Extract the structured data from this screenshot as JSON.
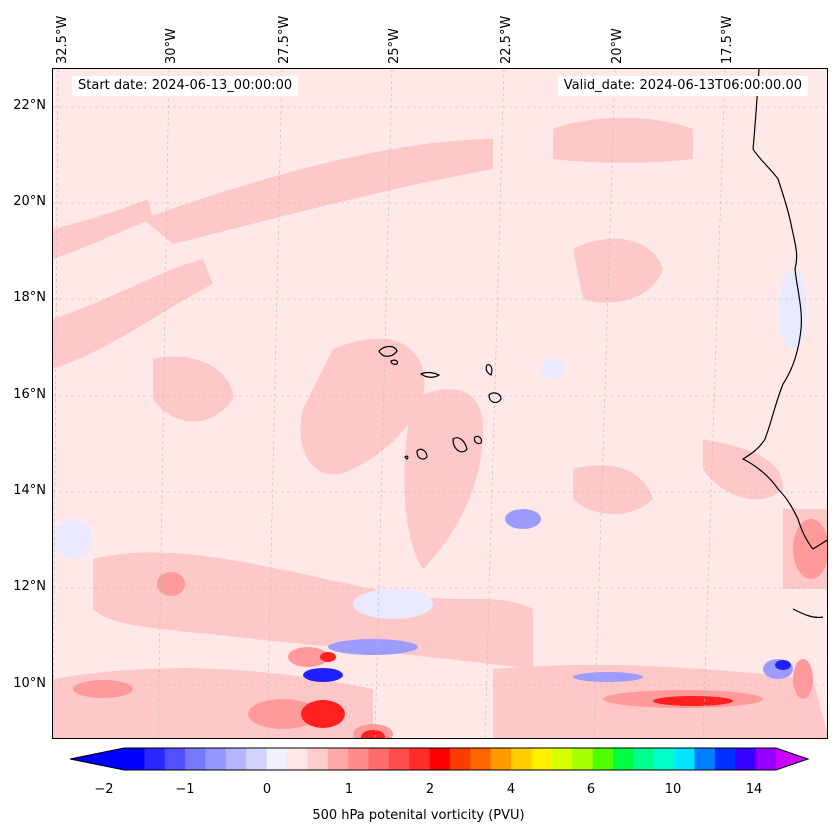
{
  "map": {
    "start_date": "Start date: 2024-06-13_00:00:00",
    "valid_date": "Valid_date: 2024-06-13T06:00:00.00",
    "longitude_labels": [
      "32.5°W",
      "30°W",
      "27.5°W",
      "25°W",
      "22.5°W",
      "20°W",
      "17.5°W"
    ],
    "latitude_labels": [
      "22°N",
      "20°N",
      "18°N",
      "16°N",
      "14°N",
      "12°N",
      "10°N"
    ],
    "colors": {
      "background": "#ffe8e8",
      "light_red": "#ffc8c8",
      "mid_red": "#ff8a8a",
      "strong_red": "#ff2020",
      "light_blue": "#eaeaff",
      "mid_blue": "#9c9cff",
      "strong_blue": "#2020ff",
      "coastline": "#000000",
      "gridline": "#bbbbbb"
    }
  },
  "colorbar": {
    "label": "500 hPa potenital vorticity (PVU)",
    "tick_labels": [
      "−2",
      "−1",
      "0",
      "1",
      "2",
      "4",
      "6",
      "10",
      "14"
    ],
    "colors": [
      "#0000ff",
      "#2828ff",
      "#5050ff",
      "#7878ff",
      "#9696ff",
      "#b4b4ff",
      "#d2d2ff",
      "#f0f0ff",
      "#ffe6e6",
      "#ffcccc",
      "#ffa8a8",
      "#ff8a8a",
      "#ff6a6a",
      "#ff4c4c",
      "#ff2c2c",
      "#ff0000",
      "#ff3c00",
      "#ff6600",
      "#ff9a00",
      "#ffcc00",
      "#fff000",
      "#d8ff00",
      "#a8ff00",
      "#50ff00",
      "#00ff40",
      "#00ff90",
      "#00ffc8",
      "#00e4ff",
      "#0080ff",
      "#0030ff",
      "#3a00ff",
      "#9400ff"
    ],
    "extend_low_color": "#0000ff",
    "extend_high_color": "#cc00ff"
  }
}
